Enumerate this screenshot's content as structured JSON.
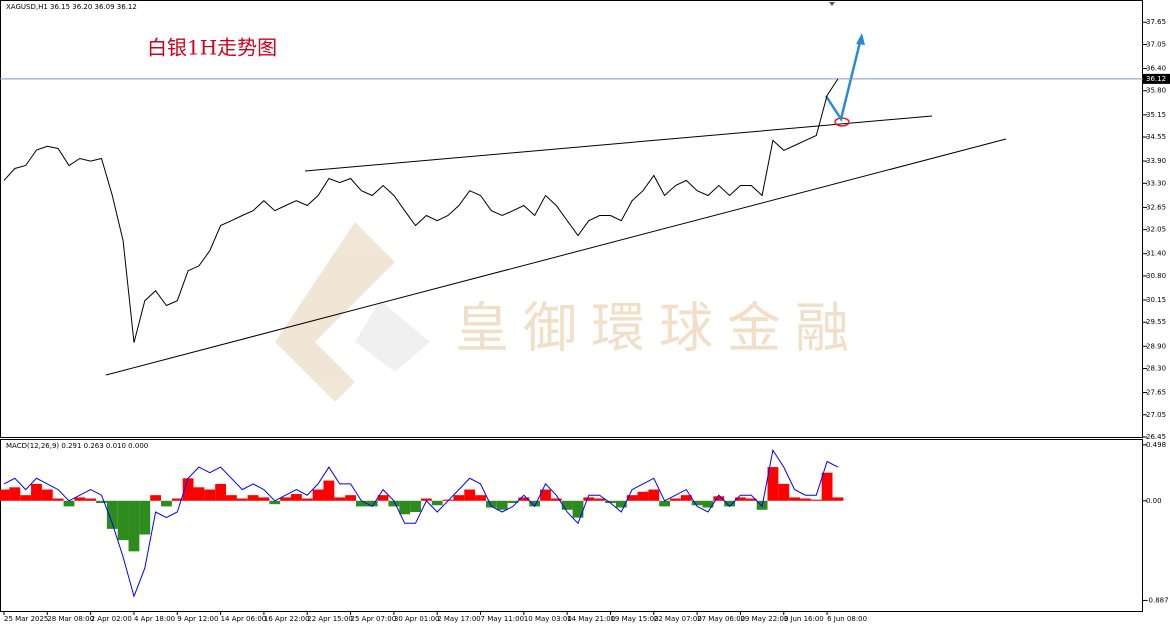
{
  "chart_data": [
    {
      "type": "line",
      "header": "XAGUSD,H1  36.15 36.20 36.09 36.12",
      "title": "白银1H走势图",
      "watermark": "皇御環球金融",
      "color": "#000000",
      "categories": [
        "25 Mar 2025",
        null,
        null,
        null,
        "28 Mar 08:00",
        null,
        null,
        null,
        "2 Apr 02:00",
        null,
        null,
        null,
        "4 Apr 18:00",
        null,
        null,
        null,
        "9 Apr 12:00",
        null,
        null,
        null,
        "14 Apr 06:00",
        null,
        null,
        null,
        "16 Apr 22:00",
        null,
        null,
        null,
        "22 Apr 15:00",
        null,
        null,
        null,
        "25 Apr 07:00",
        null,
        null,
        null,
        "30 Apr 01:00",
        null,
        null,
        null,
        "2 May 17:00",
        null,
        null,
        null,
        "7 May 11:00",
        null,
        null,
        null,
        "10 May 03:00",
        null,
        null,
        null,
        "14 May 21:00",
        null,
        null,
        null,
        "19 May 15:00",
        null,
        null,
        null,
        "22 May 07:00",
        null,
        null,
        null,
        "27 May 06:00",
        null,
        null,
        null,
        "29 May 22:00",
        null,
        null,
        null,
        "3 Jun 16:00",
        null,
        null,
        null,
        "6 Jun 08:00",
        null
      ],
      "values": [
        33.38,
        33.7,
        33.78,
        34.2,
        34.3,
        34.24,
        33.78,
        33.97,
        33.9,
        33.97,
        32.97,
        31.75,
        29.0,
        30.13,
        30.4,
        30.0,
        30.13,
        30.94,
        31.07,
        31.48,
        32.16,
        32.29,
        32.43,
        32.56,
        32.83,
        32.56,
        32.7,
        32.83,
        32.7,
        32.97,
        33.43,
        33.32,
        33.43,
        33.1,
        32.97,
        33.24,
        32.97,
        32.56,
        32.16,
        32.43,
        32.29,
        32.43,
        32.7,
        33.1,
        32.97,
        32.56,
        32.43,
        32.56,
        32.7,
        32.43,
        32.97,
        32.7,
        32.29,
        31.89,
        32.29,
        32.43,
        32.43,
        32.29,
        32.83,
        33.1,
        33.51,
        32.97,
        33.24,
        33.38,
        33.1,
        32.97,
        33.24,
        32.97,
        33.24,
        33.24,
        32.97,
        34.46,
        34.19,
        34.32,
        34.46,
        34.59,
        35.67,
        36.12
      ],
      "last_price": 36.12,
      "ylim": [
        26.45,
        38.25
      ],
      "yticks": [
        37.65,
        37.05,
        {
          "value": 36.4,
          "label": "36.40"
        },
        {
          "value": 35.8,
          "label": "35.80"
        },
        35.15,
        34.55,
        {
          "value": 33.9,
          "label": "33.90"
        },
        {
          "value": 33.3,
          "label": "33.30"
        },
        32.65,
        32.05,
        {
          "value": 31.4,
          "label": "31.40"
        },
        {
          "value": 30.8,
          "label": "30.80"
        },
        30.15,
        29.55,
        {
          "value": 28.9,
          "label": "28.90"
        },
        {
          "value": 28.3,
          "label": "28.30"
        },
        27.65,
        27.05,
        26.45
      ]
    },
    {
      "type": "macd",
      "header": "MACD(12,26,9) 0.291 0.263 0.010 0.000",
      "up_color": "#ff0000",
      "down_color": "#2e8b1e",
      "line_color": "#0000ff",
      "values": [
        0.1,
        0.12,
        0.05,
        0.15,
        0.1,
        0.02,
        -0.05,
        0.03,
        0.02,
        -0.02,
        -0.25,
        -0.35,
        -0.45,
        -0.3,
        0.05,
        -0.05,
        0.02,
        0.2,
        0.12,
        0.1,
        0.15,
        0.05,
        0.02,
        0.05,
        0.03,
        -0.03,
        0.03,
        0.06,
        0.02,
        0.1,
        0.18,
        0.03,
        0.05,
        -0.05,
        -0.05,
        0.05,
        -0.05,
        -0.12,
        -0.1,
        0.02,
        -0.04,
        0.01,
        0.05,
        0.1,
        0.05,
        -0.06,
        -0.08,
        -0.02,
        0.03,
        -0.05,
        0.1,
        0.02,
        -0.08,
        -0.15,
        0.03,
        0.02,
        -0.02,
        -0.06,
        0.05,
        0.08,
        0.1,
        -0.05,
        0.02,
        0.05,
        -0.04,
        -0.06,
        0.04,
        -0.05,
        0.03,
        0.02,
        -0.08,
        0.3,
        0.15,
        0.03,
        0.02,
        0.01,
        0.25,
        0.03
      ],
      "line": [
        0.15,
        0.2,
        0.1,
        0.2,
        0.15,
        0.1,
        0.0,
        0.05,
        0.1,
        0.05,
        -0.2,
        -0.5,
        -0.85,
        -0.6,
        -0.1,
        -0.15,
        -0.1,
        0.2,
        0.3,
        0.25,
        0.3,
        0.2,
        0.1,
        0.15,
        0.1,
        0.0,
        0.05,
        0.1,
        0.05,
        0.15,
        0.3,
        0.15,
        0.15,
        0.0,
        -0.05,
        0.1,
        0.0,
        -0.2,
        -0.2,
        0.0,
        -0.1,
        0.0,
        0.1,
        0.2,
        0.15,
        -0.05,
        -0.1,
        -0.05,
        0.05,
        -0.05,
        0.15,
        0.05,
        -0.1,
        -0.2,
        0.05,
        0.05,
        -0.02,
        -0.1,
        0.1,
        0.15,
        0.2,
        0.0,
        0.05,
        0.1,
        -0.05,
        -0.1,
        0.05,
        -0.05,
        0.05,
        0.05,
        -0.05,
        0.45,
        0.3,
        0.1,
        0.05,
        0.05,
        0.35,
        0.3
      ],
      "ylim": [
        -0.99,
        0.55
      ],
      "yticks": [
        0.498,
        {
          "value": 0,
          "label": "0.00"
        },
        -0.887
      ]
    }
  ]
}
